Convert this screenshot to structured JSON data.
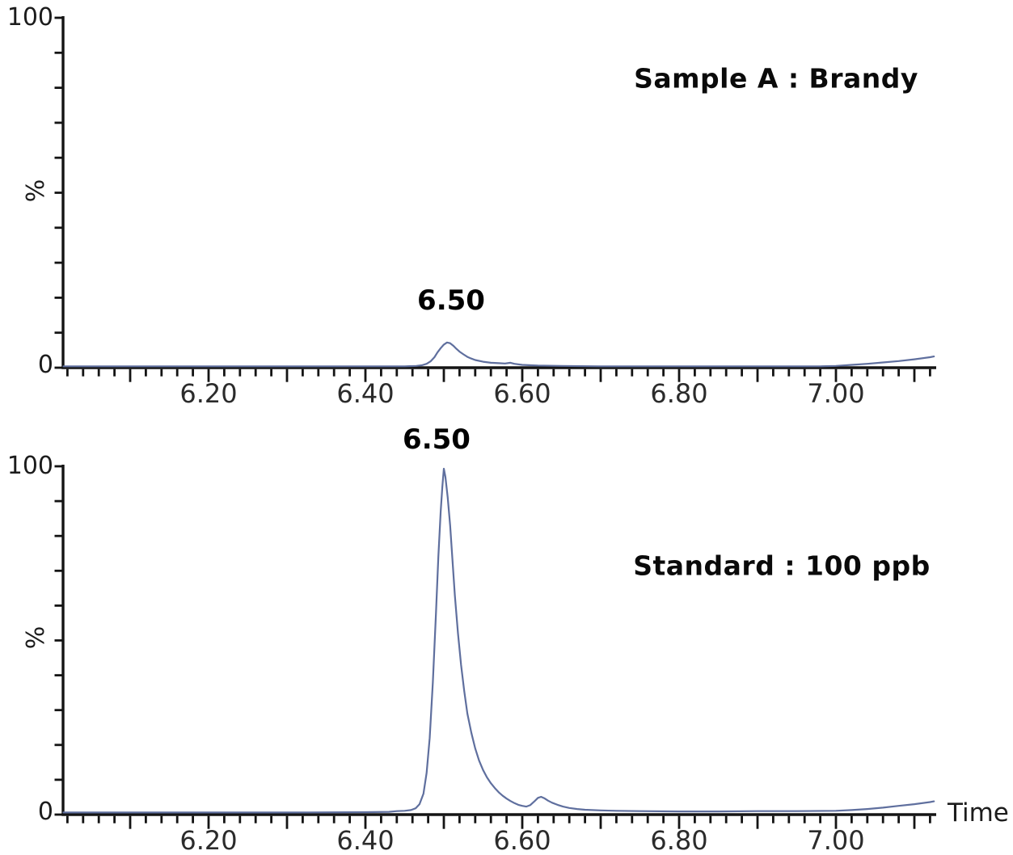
{
  "figure": {
    "x_axis_label": "Time",
    "colors": {
      "trace": "#5f6f9e",
      "axis": "#141414",
      "tick_text": "#2b2b2b",
      "title_text": "#0a0a0a",
      "background": "#ffffff"
    }
  },
  "chart_data": [
    {
      "type": "line",
      "panel": "top",
      "title": "Sample A : Brandy",
      "ylabel": "%",
      "y_max_label": "100",
      "y_min_label": "0",
      "peak_label": "6.50",
      "peak_time": 6.5,
      "peak_height_percent": 7,
      "xlim": [
        6.015,
        7.125
      ],
      "ylim": [
        0,
        100
      ],
      "x_ticks_labeled": [
        6.2,
        6.4,
        6.6,
        6.8,
        7.0
      ],
      "x_tick_labels": [
        "6.20",
        "6.40",
        "6.60",
        "6.80",
        "7.00"
      ],
      "x_minor_tick_step": 0.02,
      "y_tick_step": 10,
      "points": [
        [
          6.015,
          0.4
        ],
        [
          6.1,
          0.4
        ],
        [
          6.2,
          0.4
        ],
        [
          6.3,
          0.4
        ],
        [
          6.4,
          0.4
        ],
        [
          6.45,
          0.4
        ],
        [
          6.465,
          0.5
        ],
        [
          6.472,
          0.7
        ],
        [
          6.478,
          1.1
        ],
        [
          6.483,
          1.8
        ],
        [
          6.488,
          3.0
        ],
        [
          6.492,
          4.4
        ],
        [
          6.496,
          5.6
        ],
        [
          6.5,
          6.6
        ],
        [
          6.504,
          7.2
        ],
        [
          6.508,
          7.0
        ],
        [
          6.512,
          6.3
        ],
        [
          6.516,
          5.4
        ],
        [
          6.52,
          4.6
        ],
        [
          6.525,
          3.8
        ],
        [
          6.53,
          3.1
        ],
        [
          6.535,
          2.6
        ],
        [
          6.54,
          2.2
        ],
        [
          6.55,
          1.7
        ],
        [
          6.56,
          1.4
        ],
        [
          6.57,
          1.3
        ],
        [
          6.578,
          1.2
        ],
        [
          6.585,
          1.4
        ],
        [
          6.59,
          1.1
        ],
        [
          6.6,
          0.8
        ],
        [
          6.62,
          0.6
        ],
        [
          6.65,
          0.5
        ],
        [
          6.7,
          0.4
        ],
        [
          6.8,
          0.4
        ],
        [
          6.9,
          0.4
        ],
        [
          6.98,
          0.4
        ],
        [
          7.0,
          0.5
        ],
        [
          7.02,
          0.8
        ],
        [
          7.04,
          1.1
        ],
        [
          7.06,
          1.5
        ],
        [
          7.08,
          1.9
        ],
        [
          7.1,
          2.4
        ],
        [
          7.12,
          3.0
        ],
        [
          7.125,
          3.2
        ]
      ]
    },
    {
      "type": "line",
      "panel": "bottom",
      "title": "Standard : 100 ppb",
      "ylabel": "%",
      "y_max_label": "100",
      "y_min_label": "0",
      "peak_label": "6.50",
      "peak_time": 6.5,
      "peak_height_percent": 99,
      "xlim": [
        6.015,
        7.125
      ],
      "ylim": [
        0,
        100
      ],
      "x_ticks_labeled": [
        6.2,
        6.4,
        6.6,
        6.8,
        7.0
      ],
      "x_tick_labels": [
        "6.20",
        "6.40",
        "6.60",
        "6.80",
        "7.00"
      ],
      "x_minor_tick_step": 0.02,
      "y_tick_step": 10,
      "points": [
        [
          6.015,
          0.6
        ],
        [
          6.1,
          0.6
        ],
        [
          6.2,
          0.6
        ],
        [
          6.3,
          0.6
        ],
        [
          6.4,
          0.7
        ],
        [
          6.43,
          0.8
        ],
        [
          6.44,
          1.0
        ],
        [
          6.45,
          1.1
        ],
        [
          6.458,
          1.3
        ],
        [
          6.464,
          1.8
        ],
        [
          6.469,
          3.0
        ],
        [
          6.474,
          6.0
        ],
        [
          6.478,
          12
        ],
        [
          6.482,
          22
        ],
        [
          6.486,
          38
        ],
        [
          6.49,
          58
        ],
        [
          6.493,
          74
        ],
        [
          6.496,
          87
        ],
        [
          6.498,
          94
        ],
        [
          6.5,
          99.3
        ],
        [
          6.502,
          97
        ],
        [
          6.505,
          91
        ],
        [
          6.508,
          83
        ],
        [
          6.511,
          73
        ],
        [
          6.514,
          63
        ],
        [
          6.518,
          52
        ],
        [
          6.522,
          43
        ],
        [
          6.526,
          35.5
        ],
        [
          6.53,
          29
        ],
        [
          6.535,
          23.5
        ],
        [
          6.54,
          19
        ],
        [
          6.545,
          15.5
        ],
        [
          6.55,
          12.8
        ],
        [
          6.555,
          10.7
        ],
        [
          6.56,
          9.0
        ],
        [
          6.565,
          7.6
        ],
        [
          6.57,
          6.4
        ],
        [
          6.575,
          5.4
        ],
        [
          6.58,
          4.6
        ],
        [
          6.585,
          3.9
        ],
        [
          6.59,
          3.3
        ],
        [
          6.595,
          2.8
        ],
        [
          6.6,
          2.5
        ],
        [
          6.605,
          2.3
        ],
        [
          6.61,
          2.7
        ],
        [
          6.615,
          3.7
        ],
        [
          6.62,
          4.8
        ],
        [
          6.624,
          5.1
        ],
        [
          6.628,
          4.7
        ],
        [
          6.633,
          4.0
        ],
        [
          6.638,
          3.4
        ],
        [
          6.645,
          2.8
        ],
        [
          6.652,
          2.3
        ],
        [
          6.66,
          1.9
        ],
        [
          6.67,
          1.6
        ],
        [
          6.68,
          1.4
        ],
        [
          6.7,
          1.2
        ],
        [
          6.72,
          1.1
        ],
        [
          6.75,
          1.0
        ],
        [
          6.8,
          0.9
        ],
        [
          6.85,
          0.9
        ],
        [
          6.9,
          1.0
        ],
        [
          6.95,
          1.0
        ],
        [
          7.0,
          1.1
        ],
        [
          7.02,
          1.3
        ],
        [
          7.04,
          1.6
        ],
        [
          7.06,
          2.0
        ],
        [
          7.08,
          2.5
        ],
        [
          7.1,
          3.0
        ],
        [
          7.12,
          3.6
        ],
        [
          7.125,
          3.8
        ]
      ]
    }
  ]
}
